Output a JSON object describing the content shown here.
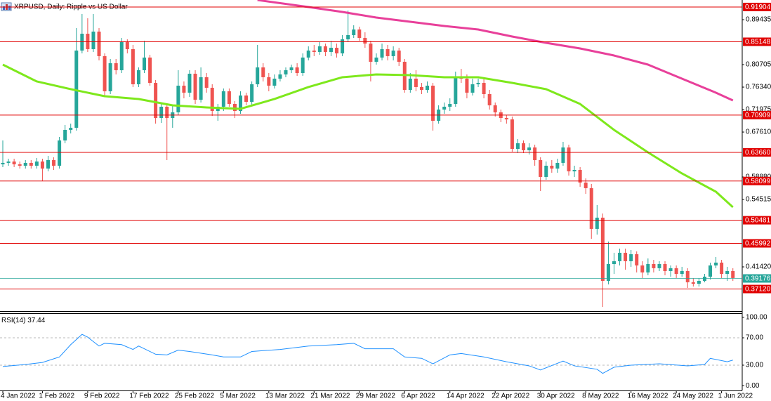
{
  "chart_data": {
    "type": "candlestick",
    "title": "XRPUSD, Daily:  Ripple vs US Dollar",
    "categories": [
      "4 Jan 2022",
      null,
      null,
      null,
      null,
      null,
      null,
      "1 Feb 2022",
      null,
      null,
      null,
      null,
      null,
      null,
      null,
      "9 Feb 2022",
      null,
      null,
      null,
      null,
      null,
      null,
      null,
      "17 Feb 2022",
      null,
      null,
      null,
      null,
      null,
      null,
      null,
      "25 Feb 2022",
      null,
      null,
      null,
      null,
      null,
      null,
      null,
      "5 Mar 2022",
      null,
      null,
      null,
      null,
      null,
      null,
      null,
      "13 Mar 2022",
      null,
      null,
      null,
      null,
      null,
      null,
      null,
      "21 Mar 2022",
      null,
      null,
      null,
      null,
      null,
      null,
      null,
      "29 Mar 2022",
      null,
      null,
      null,
      null,
      null,
      null,
      null,
      "6 Apr 2022",
      null,
      null,
      null,
      null,
      null,
      null,
      null,
      "14 Apr 2022",
      null,
      null,
      null,
      null,
      null,
      null,
      null,
      "22 Apr 2022",
      null,
      null,
      null,
      null,
      null,
      null,
      null,
      "30 Apr 2022",
      null,
      null,
      null,
      null,
      null,
      null,
      null,
      "8 May 2022",
      null,
      null,
      null,
      null,
      null,
      null,
      null,
      "16 May 2022",
      null,
      null,
      null,
      null,
      null,
      null,
      null,
      "24 May 2022",
      null,
      null,
      null,
      null,
      null,
      null,
      null,
      "1 Jun 2022",
      null,
      null
    ],
    "candles": [
      [
        0.6134,
        0.6598,
        0.608,
        0.6162
      ],
      [
        0.6162,
        0.6243,
        0.6107,
        0.6189
      ],
      [
        0.6189,
        0.6243,
        0.608,
        0.6134
      ],
      [
        0.6134,
        0.6189,
        0.6052,
        0.6107
      ],
      [
        0.6107,
        0.6216,
        0.6052,
        0.6162
      ],
      [
        0.6162,
        0.6216,
        0.6052,
        0.6107
      ],
      [
        0.6107,
        0.6257,
        0.6052,
        0.6189
      ],
      [
        0.6189,
        0.6243,
        0.5807,
        0.6052
      ],
      [
        0.6052,
        0.6298,
        0.5998,
        0.6216
      ],
      [
        0.6216,
        0.6271,
        0.6025,
        0.6107
      ],
      [
        0.6107,
        0.6666,
        0.6052,
        0.6598
      ],
      [
        0.6598,
        0.6898,
        0.6543,
        0.6803
      ],
      [
        0.6803,
        0.6925,
        0.6734,
        0.6844
      ],
      [
        0.6844,
        0.878,
        0.6789,
        0.8344
      ],
      [
        0.8344,
        0.9053,
        0.8289,
        0.8671
      ],
      [
        0.8671,
        0.8971,
        0.8317,
        0.8371
      ],
      [
        0.8371,
        0.9053,
        0.8317,
        0.8712
      ],
      [
        0.8712,
        0.878,
        0.8153,
        0.8235
      ],
      [
        0.8235,
        0.8289,
        0.7471,
        0.7553
      ],
      [
        0.7553,
        0.818,
        0.7498,
        0.8098
      ],
      [
        0.8098,
        0.818,
        0.788,
        0.7962
      ],
      [
        0.7962,
        0.8589,
        0.7907,
        0.8508
      ],
      [
        0.8508,
        0.8562,
        0.8289,
        0.8371
      ],
      [
        0.8371,
        0.8453,
        0.7635,
        0.7689
      ],
      [
        0.7689,
        0.8017,
        0.7635,
        0.7962
      ],
      [
        0.7962,
        0.8535,
        0.7907,
        0.8208
      ],
      [
        0.8208,
        0.8262,
        0.7662,
        0.7716
      ],
      [
        0.7716,
        0.7771,
        0.6925,
        0.7034
      ],
      [
        0.7034,
        0.7307,
        0.6939,
        0.7253
      ],
      [
        0.7253,
        0.7307,
        0.6216,
        0.7034
      ],
      [
        0.7034,
        0.728,
        0.6844,
        0.7144
      ],
      [
        0.7144,
        0.7962,
        0.7089,
        0.7662
      ],
      [
        0.7662,
        0.7744,
        0.7416,
        0.7526
      ],
      [
        0.7526,
        0.7962,
        0.7444,
        0.7894
      ],
      [
        0.7894,
        0.7962,
        0.7307,
        0.7389
      ],
      [
        0.7389,
        0.8017,
        0.7335,
        0.7826
      ],
      [
        0.7826,
        0.7907,
        0.7526,
        0.7621
      ],
      [
        0.7621,
        0.7689,
        0.7075,
        0.7171
      ],
      [
        0.7171,
        0.7307,
        0.698,
        0.7253
      ],
      [
        0.7253,
        0.7607,
        0.7171,
        0.7553
      ],
      [
        0.7553,
        0.7607,
        0.7253,
        0.7307
      ],
      [
        0.7307,
        0.7362,
        0.7034,
        0.7171
      ],
      [
        0.7171,
        0.7553,
        0.7116,
        0.7471
      ],
      [
        0.7471,
        0.7526,
        0.728,
        0.7348
      ],
      [
        0.7348,
        0.7744,
        0.728,
        0.7689
      ],
      [
        0.7689,
        0.8453,
        0.7635,
        0.8017
      ],
      [
        0.8017,
        0.8098,
        0.7744,
        0.7826
      ],
      [
        0.7826,
        0.7907,
        0.7553,
        0.7662
      ],
      [
        0.7662,
        0.788,
        0.7607,
        0.7798
      ],
      [
        0.7798,
        0.7962,
        0.7744,
        0.788
      ],
      [
        0.788,
        0.8017,
        0.7826,
        0.7962
      ],
      [
        0.7962,
        0.8071,
        0.7907,
        0.8017
      ],
      [
        0.8017,
        0.8098,
        0.7853,
        0.7907
      ],
      [
        0.7907,
        0.8289,
        0.7853,
        0.8208
      ],
      [
        0.8208,
        0.8426,
        0.8153,
        0.8344
      ],
      [
        0.8344,
        0.8453,
        0.8235,
        0.8317
      ],
      [
        0.8317,
        0.8508,
        0.8262,
        0.8426
      ],
      [
        0.8426,
        0.848,
        0.8235,
        0.8317
      ],
      [
        0.8317,
        0.8535,
        0.8235,
        0.8398
      ],
      [
        0.8398,
        0.848,
        0.8208,
        0.8289
      ],
      [
        0.8289,
        0.8644,
        0.8235,
        0.8562
      ],
      [
        0.8562,
        0.9121,
        0.8508,
        0.8644
      ],
      [
        0.8644,
        0.8835,
        0.8589,
        0.8753
      ],
      [
        0.8753,
        0.8808,
        0.8535,
        0.8589
      ],
      [
        0.8589,
        0.8699,
        0.8398,
        0.848
      ],
      [
        0.848,
        0.8535,
        0.7744,
        0.8126
      ],
      [
        0.8126,
        0.8289,
        0.8071,
        0.8208
      ],
      [
        0.8208,
        0.848,
        0.8153,
        0.8371
      ],
      [
        0.8371,
        0.8453,
        0.8153,
        0.8235
      ],
      [
        0.8235,
        0.8426,
        0.8153,
        0.8344
      ],
      [
        0.8344,
        0.8398,
        0.8044,
        0.8126
      ],
      [
        0.8126,
        0.818,
        0.7526,
        0.758
      ],
      [
        0.758,
        0.7907,
        0.7526,
        0.7798
      ],
      [
        0.7798,
        0.7962,
        0.7553,
        0.7635
      ],
      [
        0.7635,
        0.7716,
        0.7498,
        0.758
      ],
      [
        0.758,
        0.7744,
        0.7526,
        0.7662
      ],
      [
        0.7662,
        0.7716,
        0.6789,
        0.698
      ],
      [
        0.698,
        0.728,
        0.6925,
        0.7198
      ],
      [
        0.7198,
        0.7335,
        0.7116,
        0.7253
      ],
      [
        0.7253,
        0.7416,
        0.7171,
        0.7307
      ],
      [
        0.7307,
        0.7935,
        0.7253,
        0.7826
      ],
      [
        0.7826,
        0.7989,
        0.7716,
        0.7798
      ],
      [
        0.7798,
        0.788,
        0.7416,
        0.7526
      ],
      [
        0.7526,
        0.7798,
        0.7471,
        0.7689
      ],
      [
        0.7689,
        0.7798,
        0.7635,
        0.7716
      ],
      [
        0.7716,
        0.7798,
        0.7416,
        0.7498
      ],
      [
        0.7498,
        0.758,
        0.7198,
        0.728
      ],
      [
        0.728,
        0.7335,
        0.7062,
        0.7144
      ],
      [
        0.7144,
        0.7198,
        0.6953,
        0.7034
      ],
      [
        0.7034,
        0.7089,
        0.6925,
        0.7007
      ],
      [
        0.7007,
        0.7062,
        0.638,
        0.6434
      ],
      [
        0.6434,
        0.6625,
        0.6352,
        0.6543
      ],
      [
        0.6543,
        0.6598,
        0.6352,
        0.6407
      ],
      [
        0.6407,
        0.6543,
        0.6325,
        0.6462
      ],
      [
        0.6462,
        0.6516,
        0.6107,
        0.6216
      ],
      [
        0.6216,
        0.6271,
        0.5616,
        0.5889
      ],
      [
        0.5889,
        0.6189,
        0.5834,
        0.6107
      ],
      [
        0.6107,
        0.6216,
        0.5971,
        0.6052
      ],
      [
        0.6052,
        0.6243,
        0.5971,
        0.6162
      ],
      [
        0.6162,
        0.6571,
        0.6107,
        0.6462
      ],
      [
        0.6462,
        0.6516,
        0.5916,
        0.5998
      ],
      [
        0.5998,
        0.6107,
        0.5889,
        0.6025
      ],
      [
        0.6025,
        0.608,
        0.5698,
        0.578
      ],
      [
        0.578,
        0.5861,
        0.5561,
        0.5671
      ],
      [
        0.5671,
        0.5752,
        0.4688,
        0.488
      ],
      [
        0.488,
        0.5343,
        0.477,
        0.5098
      ],
      [
        0.5098,
        0.5179,
        0.3365,
        0.387
      ],
      [
        0.387,
        0.4634,
        0.3802,
        0.4197
      ],
      [
        0.4197,
        0.4416,
        0.4006,
        0.4252
      ],
      [
        0.4252,
        0.4497,
        0.417,
        0.4416
      ],
      [
        0.4416,
        0.4497,
        0.4088,
        0.4252
      ],
      [
        0.4252,
        0.447,
        0.4143,
        0.4388
      ],
      [
        0.4388,
        0.4443,
        0.4034,
        0.417
      ],
      [
        0.417,
        0.4252,
        0.3925,
        0.4034
      ],
      [
        0.4034,
        0.4306,
        0.3979,
        0.4197
      ],
      [
        0.4197,
        0.4279,
        0.4034,
        0.4116
      ],
      [
        0.4116,
        0.4252,
        0.4061,
        0.4197
      ],
      [
        0.4197,
        0.4252,
        0.3979,
        0.4061
      ],
      [
        0.4061,
        0.417,
        0.3952,
        0.4116
      ],
      [
        0.4116,
        0.417,
        0.3925,
        0.4006
      ],
      [
        0.4006,
        0.4143,
        0.3952,
        0.4061
      ],
      [
        0.4061,
        0.4116,
        0.3734,
        0.3843
      ],
      [
        0.3843,
        0.3925,
        0.3761,
        0.3815
      ],
      [
        0.3815,
        0.3925,
        0.3761,
        0.387
      ],
      [
        0.387,
        0.4006,
        0.3843,
        0.3952
      ],
      [
        0.3952,
        0.4225,
        0.3897,
        0.417
      ],
      [
        0.417,
        0.4334,
        0.4116,
        0.4225
      ],
      [
        0.4225,
        0.4279,
        0.3925,
        0.4006
      ],
      [
        0.4006,
        0.4143,
        0.387,
        0.4061
      ],
      [
        0.4061,
        0.4116,
        0.387,
        0.3925
      ]
    ],
    "up_color": "#26a69a",
    "down_color": "#ef5350",
    "ylim": [
      0.3283,
      0.9326
    ],
    "yticks": [
      0.89435,
      0.80705,
      {
        "value": 0.7634,
        "label": "0.76340"
      },
      0.71975,
      {
        "value": 0.6761,
        "label": "0.67610"
      },
      {
        "value": 0.5888,
        "label": "0.58880"
      },
      0.54515,
      {
        "value": 0.4142,
        "label": "0.41420"
      }
    ],
    "levels": [
      0.91904,
      0.85148,
      0.70909,
      {
        "value": 0.6366,
        "label": "0.63660"
      },
      0.58099,
      0.50481,
      0.45992,
      {
        "value": 0.3712,
        "label": "0.37120"
      }
    ],
    "level_color": "#e00000",
    "last_price": 0.39176,
    "last_price_color": "#26a69a",
    "moving_averages": [
      {
        "color": "#7ee81c",
        "x": [
          0,
          6,
          12,
          18,
          24,
          30,
          36,
          42,
          48,
          54,
          60,
          66,
          72,
          78,
          84,
          90,
          96,
          102,
          108,
          114,
          120,
          126,
          129
        ],
        "values": [
          0.8071,
          0.7744,
          0.7594,
          0.7457,
          0.7403,
          0.728,
          0.7239,
          0.7212,
          0.7403,
          0.7635,
          0.7826,
          0.788,
          0.7866,
          0.7826,
          0.7826,
          0.7716,
          0.7594,
          0.7307,
          0.6803,
          0.6366,
          0.5957,
          0.5602,
          0.5302
        ]
      },
      {
        "color": "#e8409a",
        "x": [
          45,
          54,
          60,
          66,
          72,
          78,
          84,
          90,
          96,
          102,
          108,
          114,
          120,
          126,
          129
        ],
        "values": [
          0.9326,
          0.919,
          0.9094,
          0.8985,
          0.8903,
          0.8821,
          0.8753,
          0.8617,
          0.8494,
          0.8385,
          0.8248,
          0.8071,
          0.7798,
          0.7526,
          0.7375
        ]
      }
    ],
    "rsi": {
      "title": "RSI(14)",
      "color": "#1e90ff",
      "x": [
        0,
        4,
        7,
        10,
        12,
        14,
        15,
        17,
        18,
        21,
        23,
        24,
        27,
        29,
        31,
        33,
        37,
        39,
        42,
        44,
        49,
        54,
        59,
        62,
        64,
        69,
        71,
        74,
        76,
        79,
        81,
        85,
        89,
        93,
        95,
        99,
        101,
        105,
        106,
        108,
        111,
        116,
        121,
        124,
        125,
        128,
        129
      ],
      "values": [
        28,
        31,
        34,
        42,
        60,
        75,
        71,
        58,
        62,
        60,
        53,
        58,
        46,
        45,
        52,
        50,
        45,
        42,
        42,
        50,
        53,
        58,
        60,
        62,
        54,
        54,
        42,
        40,
        32,
        45,
        47,
        42,
        35,
        29,
        23,
        36,
        29,
        24,
        18,
        27,
        30,
        32,
        29,
        31,
        40,
        35,
        37.44
      ],
      "ylim": [
        -7,
        107
      ],
      "yticks": [
        {
          "value": 100,
          "label": "100.00"
        },
        {
          "value": 70,
          "label": "70.00"
        },
        {
          "value": 30,
          "label": "30.00"
        },
        {
          "value": 0,
          "label": "0.00"
        }
      ],
      "levels": [
        70,
        30
      ]
    }
  }
}
